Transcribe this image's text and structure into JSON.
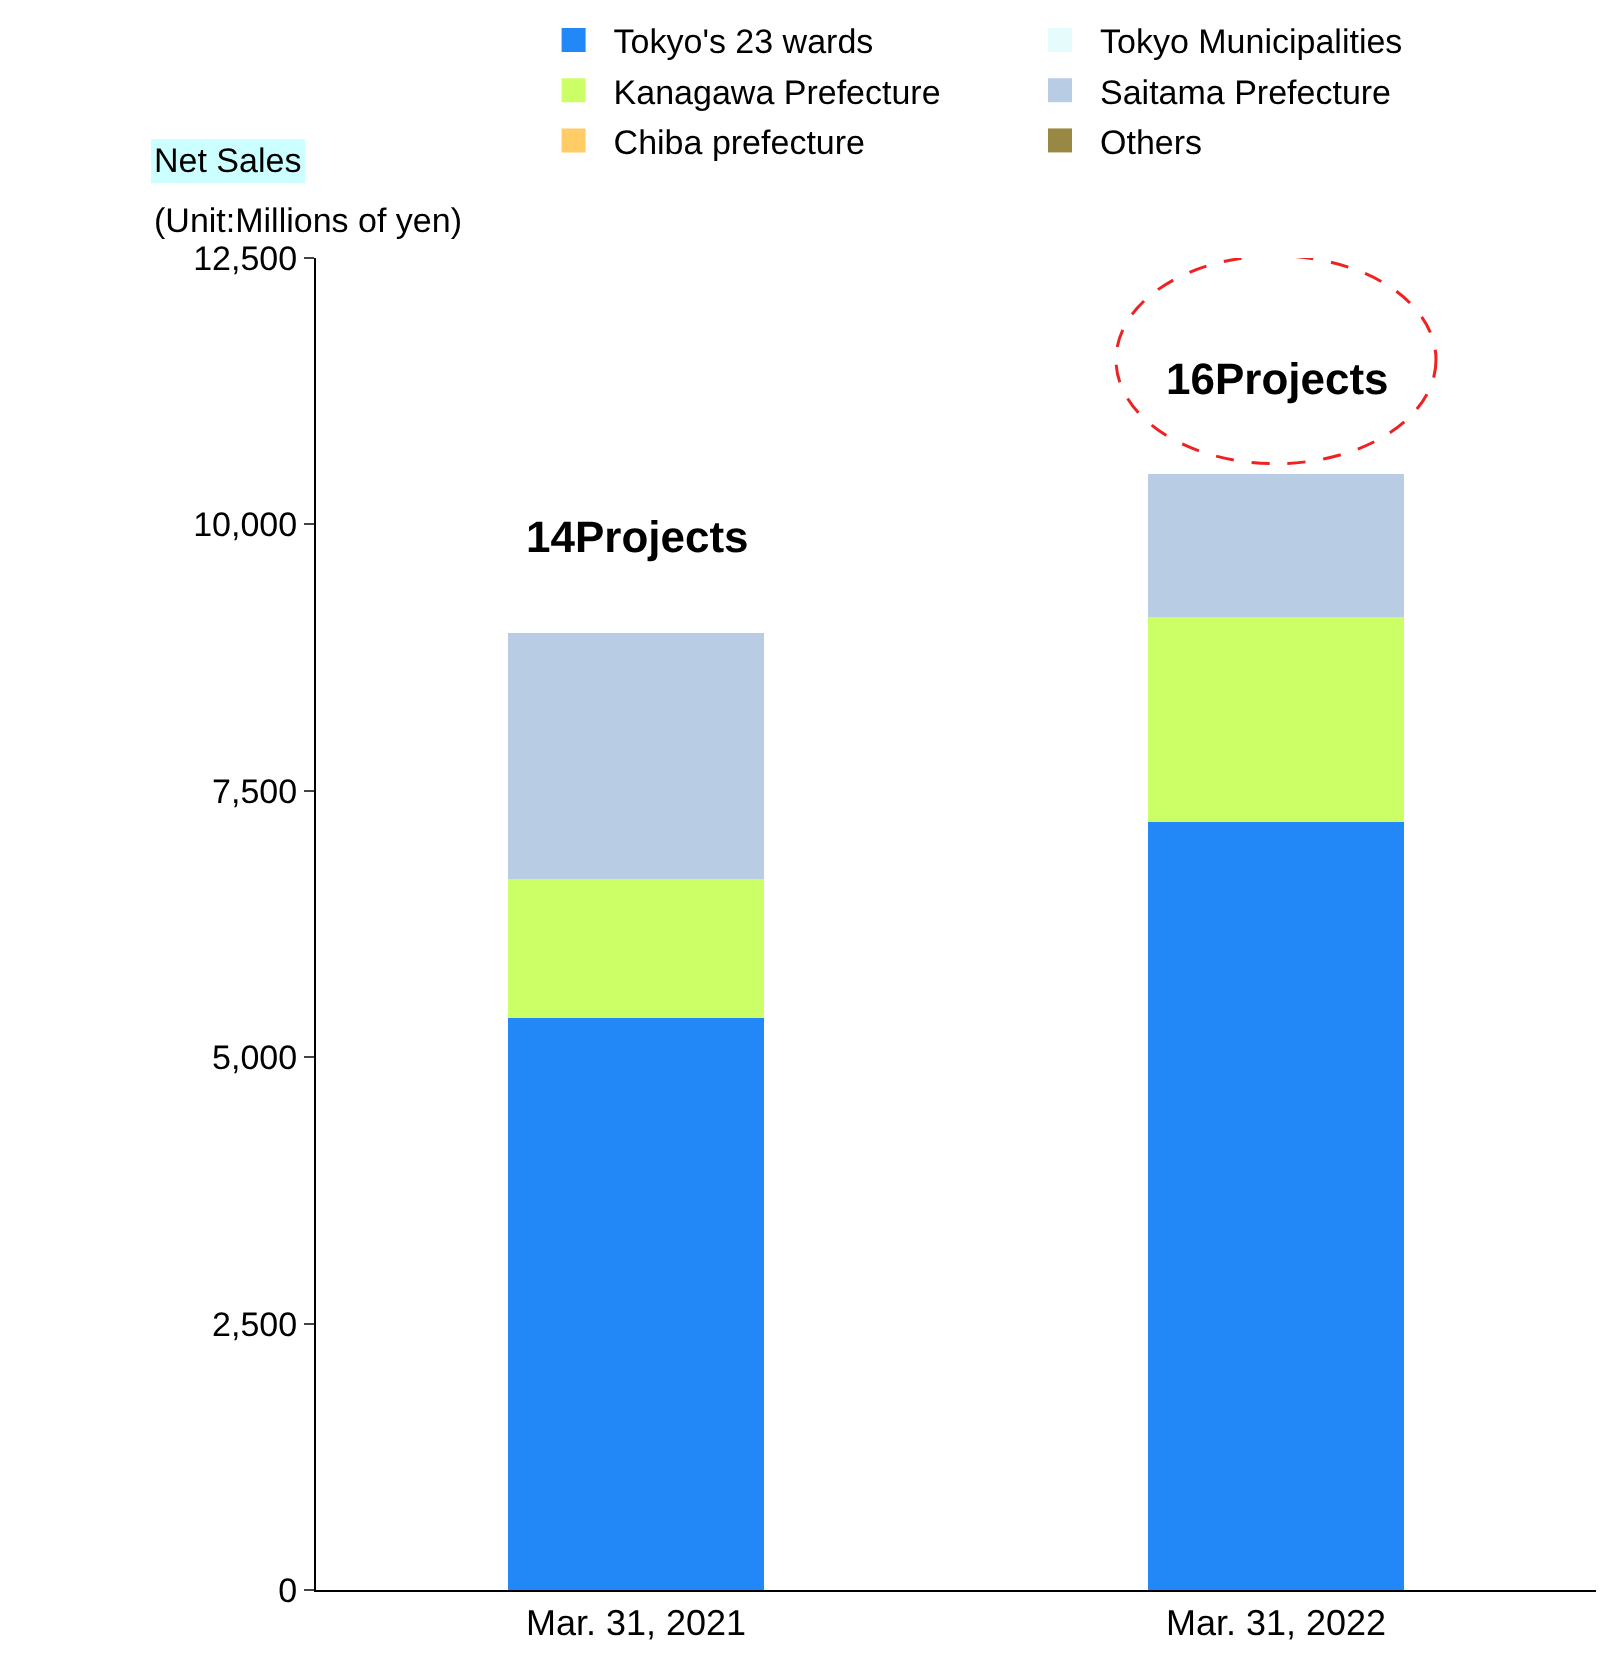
{
  "chart_data": {
    "type": "bar",
    "stacked": true,
    "ylabel": "Net Sales",
    "categories": [
      "Mar. 31, 2021",
      "Mar. 31, 2022"
    ],
    "series": [
      {
        "name": "Tokyo's 23 wards",
        "color": "#2288f8",
        "values": [
          5370,
          7210
        ]
      },
      {
        "name": "Tokyo Municipalities",
        "color": "#e6fcfc",
        "values": [
          0,
          0
        ]
      },
      {
        "name": "Kanagawa Prefecture",
        "color": "#ccff66",
        "values": [
          1300,
          1920
        ]
      },
      {
        "name": "Saitama Prefecture",
        "color": "#b8cce4",
        "values": [
          2310,
          1340
        ]
      },
      {
        "name": "Chiba prefecture",
        "color": "#ffcc66",
        "values": [
          0,
          0
        ]
      },
      {
        "name": "Others",
        "color": "#998844",
        "values": [
          0,
          0
        ]
      }
    ],
    "ylim": [
      0,
      12500
    ],
    "yticks": [
      0,
      {
        "value": 2500,
        "label": "2,500"
      },
      {
        "value": 5000,
        "label": "5,000"
      },
      {
        "value": 7500,
        "label": "7,500"
      },
      {
        "value": 10000,
        "label": "10,000"
      },
      {
        "value": 12500,
        "label": "12,500"
      }
    ],
    "legend": "top",
    "annotations": [
      "(Unit:Millions of yen)",
      "14Projects",
      "16Projects"
    ]
  }
}
